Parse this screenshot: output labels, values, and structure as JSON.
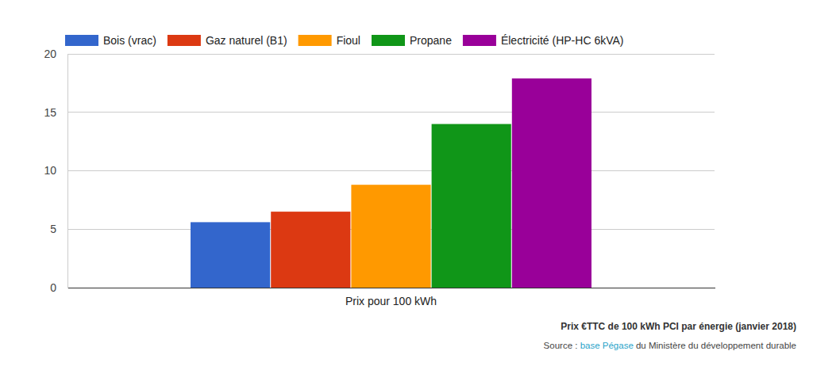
{
  "chart_data": {
    "type": "bar",
    "categories": [
      "Prix pour 100 kWh"
    ],
    "series": [
      {
        "name": "Bois (vrac)",
        "color": "#3366cc",
        "values": [
          5.6
        ]
      },
      {
        "name": "Gaz naturel (B1)",
        "color": "#dc3912",
        "values": [
          6.5
        ]
      },
      {
        "name": "Fioul",
        "color": "#ff9900",
        "values": [
          8.8
        ]
      },
      {
        "name": "Propane",
        "color": "#109618",
        "values": [
          14.0
        ]
      },
      {
        "name": "Électricité (HP-HC 6kVA)",
        "color": "#990099",
        "values": [
          17.9
        ]
      }
    ],
    "ylim": [
      0,
      20
    ],
    "yticks": [
      0,
      5,
      10,
      15,
      20
    ],
    "grid": true,
    "legend": "top",
    "annotations": [
      "Prix €TTC de 100 kWh PCI par énergie (janvier 2018)"
    ],
    "source": [
      "Source : ",
      "base Pégase",
      " du Ministère du développement durable"
    ]
  }
}
